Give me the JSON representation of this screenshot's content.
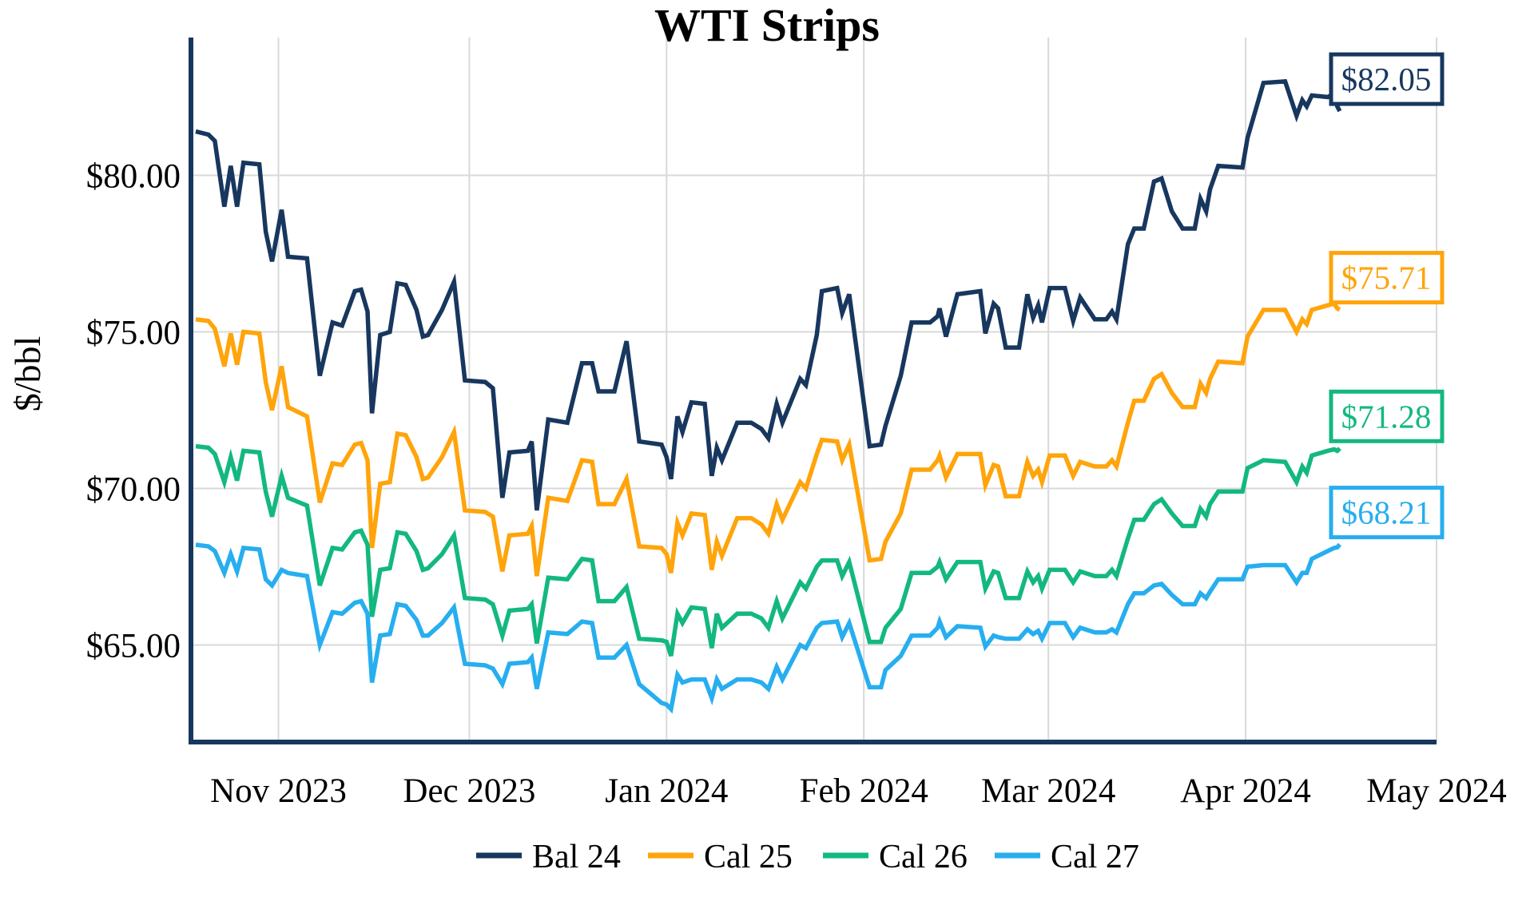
{
  "chart_data": {
    "type": "line",
    "title": "WTI Strips",
    "ylabel": "$/bbl",
    "grid": true,
    "legend_position": "bottom",
    "background_color": "#ffffff",
    "grid_color": "#d9d9d9",
    "axis_color": "#17375e",
    "text_color": "#000000",
    "ylim": [
      61.9,
      84.4
    ],
    "xlim_days": [
      -0.75,
      195
    ],
    "y_ticks": [
      {
        "value": 65,
        "label": "$65.00"
      },
      {
        "value": 70,
        "label": "$70.00"
      },
      {
        "value": 75,
        "label": "$75.00"
      },
      {
        "value": 80,
        "label": "$80.00"
      }
    ],
    "x_ticks": [
      {
        "day": 13,
        "label": "Nov 2023"
      },
      {
        "day": 43,
        "label": "Dec 2023"
      },
      {
        "day": 74,
        "label": "Jan 2024"
      },
      {
        "day": 105,
        "label": "Feb 2024"
      },
      {
        "day": 134,
        "label": "Mar 2024"
      },
      {
        "day": 165,
        "label": "Apr 2024"
      },
      {
        "day": 195,
        "label": "May 2024"
      }
    ],
    "days": [
      0,
      2,
      3,
      4.5,
      5.5,
      6.5,
      7.5,
      10,
      11,
      12,
      13.5,
      14.5,
      17.5,
      19.5,
      21.5,
      23,
      25,
      26,
      27,
      27.7,
      29,
      30.5,
      31.7,
      33,
      34.7,
      35.7,
      36.5,
      38.7,
      40.6,
      42.3,
      45.5,
      46.7,
      48.2,
      49.3,
      52.2,
      52.8,
      53.6,
      55.4,
      58.4,
      60.7,
      62.3,
      63.3,
      65.8,
      67.7,
      69.7,
      73.2,
      74,
      74.7,
      75.7,
      76.5,
      77.9,
      80,
      81.1,
      81.9,
      82.7,
      85.1,
      87.3,
      88.9,
      90,
      91.3,
      92.2,
      95,
      95.9,
      97.6,
      98.4,
      100.8,
      101.6,
      102.7,
      105.9,
      107.7,
      108.4,
      110.8,
      112.5,
      115.4,
      116.6,
      116.9,
      117.9,
      119.7,
      123.3,
      124.1,
      125.4,
      126.1,
      127.3,
      129.4,
      130.7,
      131.6,
      132.4,
      133,
      134.2,
      136.6,
      137.9,
      139,
      141.3,
      143.1,
      144,
      144.7,
      146.5,
      147.5,
      149,
      150.6,
      151.8,
      153.4,
      155.1,
      157,
      157.9,
      158.8,
      159.4,
      160.7,
      164.5,
      165.3,
      167.8,
      171.2,
      173,
      173.9,
      174.6,
      175.4,
      177.9,
      178.9,
      179.4,
      179.8
    ],
    "series": [
      {
        "name": "Bal 24",
        "color": "#17375e",
        "end_label": "$82.05",
        "values": [
          81.4,
          81.3,
          81.1,
          79.0,
          80.3,
          79.0,
          80.4,
          80.35,
          78.2,
          77.25,
          78.9,
          77.4,
          77.35,
          73.6,
          75.3,
          75.2,
          76.3,
          76.35,
          75.65,
          72.4,
          74.9,
          75.0,
          76.55,
          76.5,
          75.7,
          74.85,
          74.9,
          75.7,
          76.6,
          73.45,
          73.4,
          73.2,
          69.7,
          71.15,
          71.2,
          71.5,
          69.3,
          72.2,
          72.1,
          74.0,
          74.0,
          73.1,
          73.1,
          74.7,
          71.5,
          71.4,
          71.0,
          70.3,
          72.3,
          71.8,
          72.75,
          72.7,
          70.4,
          71.3,
          70.9,
          72.1,
          72.1,
          71.9,
          71.6,
          72.7,
          72.1,
          73.5,
          73.3,
          74.9,
          76.3,
          76.4,
          75.6,
          76.2,
          71.35,
          71.4,
          72.0,
          73.6,
          75.3,
          75.3,
          75.5,
          75.75,
          74.85,
          76.2,
          76.3,
          74.95,
          75.9,
          75.75,
          74.5,
          74.5,
          76.2,
          75.45,
          75.85,
          75.3,
          76.4,
          76.4,
          75.35,
          76.1,
          75.4,
          75.4,
          75.65,
          75.4,
          77.8,
          78.3,
          78.3,
          79.8,
          79.9,
          78.85,
          78.3,
          78.3,
          79.25,
          78.85,
          79.55,
          80.3,
          80.25,
          81.2,
          82.95,
          83.0,
          81.9,
          82.4,
          82.2,
          82.55,
          82.5,
          82.6,
          82.2,
          82.05
        ]
      },
      {
        "name": "Cal 25",
        "color": "#ffa40b",
        "end_label": "$75.71",
        "values": [
          75.4,
          75.35,
          75.1,
          73.9,
          74.95,
          73.95,
          75.0,
          74.95,
          73.4,
          72.5,
          73.9,
          72.6,
          72.3,
          69.55,
          70.8,
          70.75,
          71.4,
          71.45,
          70.9,
          68.1,
          70.15,
          70.2,
          71.75,
          71.7,
          71.0,
          70.3,
          70.35,
          71.0,
          71.8,
          69.3,
          69.25,
          69.1,
          67.35,
          68.5,
          68.55,
          68.8,
          67.2,
          69.7,
          69.6,
          70.9,
          70.85,
          69.5,
          69.5,
          70.3,
          68.15,
          68.1,
          67.9,
          67.3,
          68.9,
          68.5,
          69.2,
          69.15,
          67.4,
          68.3,
          67.85,
          69.05,
          69.05,
          68.85,
          68.55,
          69.5,
          69.0,
          70.2,
          70.0,
          71.1,
          71.55,
          71.5,
          70.9,
          71.4,
          67.7,
          67.75,
          68.3,
          69.2,
          70.6,
          70.6,
          70.9,
          71.05,
          70.35,
          71.1,
          71.1,
          70.1,
          70.75,
          70.7,
          69.75,
          69.75,
          70.85,
          70.4,
          70.6,
          70.2,
          71.05,
          71.05,
          70.4,
          70.85,
          70.7,
          70.7,
          70.9,
          70.7,
          72.1,
          72.8,
          72.8,
          73.5,
          73.65,
          73.05,
          72.6,
          72.6,
          73.35,
          73.05,
          73.5,
          74.05,
          74.0,
          74.85,
          75.7,
          75.7,
          75.0,
          75.4,
          75.25,
          75.7,
          75.85,
          75.9,
          75.75,
          75.71
        ]
      },
      {
        "name": "Cal 26",
        "color": "#13b880",
        "end_label": "$71.28",
        "values": [
          71.35,
          71.3,
          71.1,
          70.2,
          71.0,
          70.25,
          71.2,
          71.15,
          69.9,
          69.1,
          70.4,
          69.7,
          69.45,
          66.9,
          68.1,
          68.05,
          68.6,
          68.65,
          68.2,
          65.9,
          67.4,
          67.45,
          68.6,
          68.55,
          68.0,
          67.4,
          67.45,
          67.9,
          68.5,
          66.5,
          66.45,
          66.3,
          65.3,
          66.1,
          66.15,
          66.3,
          65.05,
          67.15,
          67.1,
          67.75,
          67.7,
          66.4,
          66.4,
          66.85,
          65.2,
          65.15,
          65.1,
          64.65,
          66.0,
          65.7,
          66.2,
          66.15,
          64.9,
          66.0,
          65.55,
          66.0,
          66.0,
          65.85,
          65.55,
          66.4,
          65.85,
          67.0,
          66.8,
          67.5,
          67.7,
          67.7,
          67.2,
          67.65,
          65.1,
          65.1,
          65.55,
          66.15,
          67.3,
          67.3,
          67.5,
          67.65,
          67.1,
          67.65,
          67.65,
          66.8,
          67.35,
          67.3,
          66.5,
          66.5,
          67.35,
          67.0,
          67.2,
          66.8,
          67.4,
          67.4,
          67.0,
          67.35,
          67.2,
          67.2,
          67.4,
          67.2,
          68.4,
          69.0,
          69.0,
          69.5,
          69.65,
          69.2,
          68.8,
          68.8,
          69.35,
          69.1,
          69.5,
          69.9,
          69.9,
          70.65,
          70.9,
          70.85,
          70.2,
          70.7,
          70.5,
          71.05,
          71.2,
          71.25,
          71.2,
          71.28
        ]
      },
      {
        "name": "Cal 27",
        "color": "#27aeef",
        "end_label": "$68.21",
        "values": [
          68.2,
          68.15,
          68.0,
          67.3,
          67.9,
          67.35,
          68.1,
          68.05,
          67.1,
          66.9,
          67.4,
          67.3,
          67.2,
          65.0,
          66.05,
          66.0,
          66.35,
          66.4,
          66.0,
          63.8,
          65.3,
          65.35,
          66.3,
          66.25,
          65.8,
          65.3,
          65.3,
          65.7,
          66.2,
          64.4,
          64.35,
          64.25,
          63.75,
          64.4,
          64.45,
          64.6,
          63.6,
          65.4,
          65.35,
          65.75,
          65.7,
          64.6,
          64.6,
          65.0,
          63.75,
          63.15,
          63.1,
          62.95,
          64.05,
          63.8,
          63.9,
          63.9,
          63.3,
          63.9,
          63.6,
          63.9,
          63.9,
          63.8,
          63.6,
          64.3,
          63.9,
          65.0,
          64.9,
          65.55,
          65.7,
          65.75,
          65.25,
          65.7,
          63.65,
          63.65,
          64.2,
          64.65,
          65.3,
          65.3,
          65.55,
          65.75,
          65.25,
          65.6,
          65.55,
          64.95,
          65.3,
          65.25,
          65.2,
          65.2,
          65.5,
          65.35,
          65.45,
          65.2,
          65.7,
          65.7,
          65.25,
          65.55,
          65.4,
          65.4,
          65.5,
          65.4,
          66.3,
          66.65,
          66.65,
          66.9,
          66.95,
          66.6,
          66.3,
          66.3,
          66.65,
          66.5,
          66.7,
          67.1,
          67.1,
          67.5,
          67.55,
          67.55,
          67.0,
          67.3,
          67.3,
          67.75,
          68.0,
          68.1,
          68.12,
          68.21
        ]
      }
    ],
    "legend": [
      "Bal 24",
      "Cal 25",
      "Cal 26",
      "Cal 27"
    ]
  }
}
